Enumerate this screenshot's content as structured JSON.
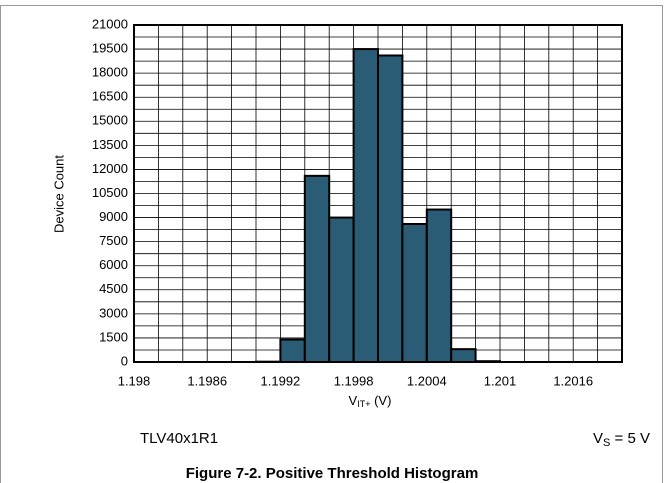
{
  "chart_data": {
    "type": "histogram",
    "title": "Figure 7-2. Positive Threshold Histogram",
    "ylabel": "Device Count",
    "xlabel": {
      "main": "V",
      "sub": "IT+",
      "unit": " (V)"
    },
    "annotations": {
      "device": "TLV40x1R1",
      "supply": {
        "main": "V",
        "sub": "S",
        "rest": " = 5 V"
      }
    },
    "bins": [
      1.198,
      1.1982,
      1.1984,
      1.1986,
      1.1988,
      1.199,
      1.1992,
      1.1994,
      1.1996,
      1.1998,
      1.2,
      1.2002,
      1.2004,
      1.2006,
      1.2008,
      1.201,
      1.2012,
      1.2014,
      1.2016,
      1.2018,
      1.202
    ],
    "values": [
      0,
      0,
      0,
      0,
      0,
      20,
      1400,
      11600,
      9000,
      19500,
      19100,
      8600,
      9500,
      800,
      50,
      0,
      0,
      0,
      0,
      0
    ],
    "color": "#2b5c76",
    "xlim": [
      1.198,
      1.202
    ],
    "xticks": [
      1.198,
      1.1986,
      1.1992,
      1.1998,
      1.2004,
      1.201,
      1.2016
    ],
    "ylim": [
      0,
      21000
    ],
    "yticks": [
      0,
      1500,
      3000,
      4500,
      6000,
      7500,
      9000,
      10500,
      12000,
      13500,
      15000,
      16500,
      18000,
      19500,
      21000
    ],
    "grid": true
  }
}
